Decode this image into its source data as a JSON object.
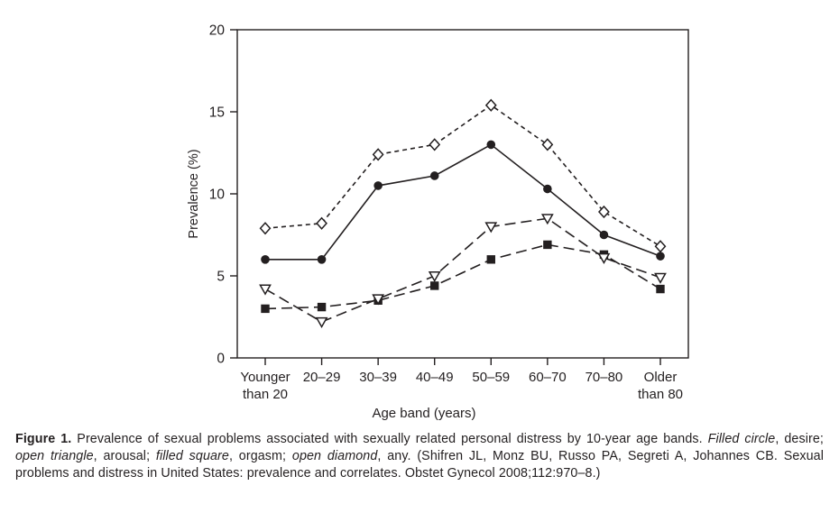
{
  "figure": {
    "caption": {
      "label": "Figure 1.",
      "part1": " Prevalence of sexual problems associated with sexually related personal distress by 10-year age bands. ",
      "seg_circle": "Filled circle",
      "part2": ", desire; ",
      "seg_triangle": "open triangle",
      "part3": ", arousal; ",
      "seg_square": "filled square",
      "part4": ", orgasm; ",
      "seg_diamond": "open diamond",
      "part5": ", any. (Shifren JL, Monz BU, Russo PA, Segreti A, Johannes CB. Sexual problems and distress in United States: prevalence and correlates. Obstet Gynecol 2008;112:970–8.)"
    }
  },
  "chart_data": {
    "type": "line",
    "title": "",
    "xlabel": "Age band (years)",
    "ylabel": "Prevalence (%)",
    "ylim": [
      0,
      20
    ],
    "yticks": [
      0,
      5,
      10,
      15,
      20
    ],
    "grid": false,
    "legend_position": "described-in-caption",
    "ink_color": "#231f20",
    "categories": [
      "Younger\nthan 20",
      "20–29",
      "30–39",
      "40–49",
      "50–59",
      "60–70",
      "70–80",
      "Older\nthan 80"
    ],
    "series": [
      {
        "name": "desire",
        "marker": "filled-circle",
        "line": "solid",
        "values": [
          6.0,
          6.0,
          10.5,
          11.1,
          13.0,
          10.3,
          7.5,
          6.2
        ]
      },
      {
        "name": "arousal",
        "marker": "open-triangle",
        "line": "long-dash",
        "values": [
          4.2,
          2.2,
          3.6,
          5.0,
          8.0,
          8.5,
          6.1,
          4.9
        ]
      },
      {
        "name": "orgasm",
        "marker": "filled-square",
        "line": "long-dash",
        "values": [
          3.0,
          3.1,
          3.5,
          4.4,
          6.0,
          6.9,
          6.3,
          4.2
        ]
      },
      {
        "name": "any",
        "marker": "open-diamond",
        "line": "short-dash",
        "values": [
          7.9,
          8.2,
          12.4,
          13.0,
          15.4,
          13.0,
          8.9,
          6.8
        ]
      }
    ]
  }
}
